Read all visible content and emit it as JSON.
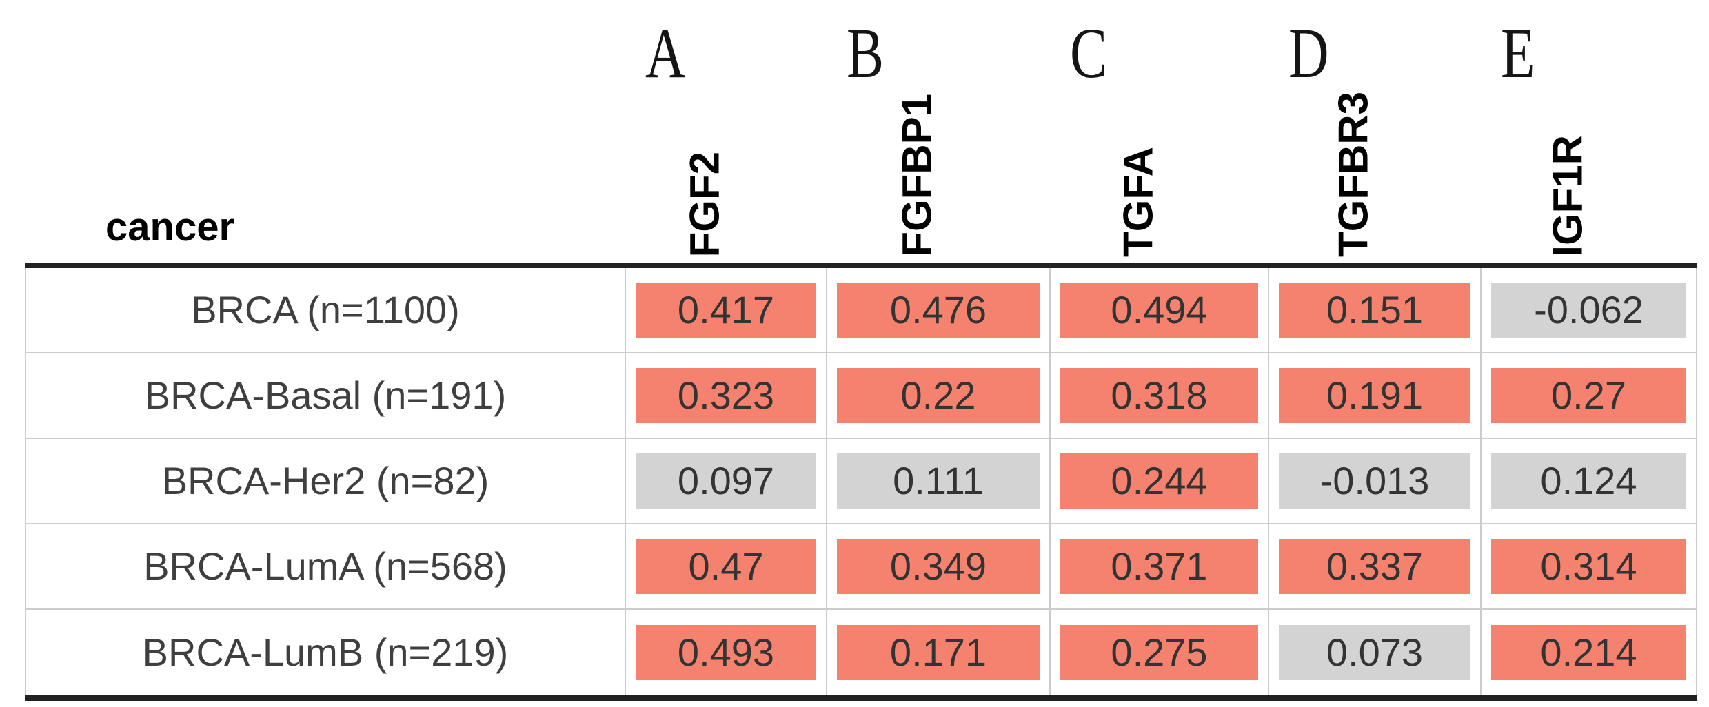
{
  "colors": {
    "significant_bg": "#F4826E",
    "not_significant_bg": "#D3D3D3",
    "header_rule": "#212121",
    "grid_line": "#CCCCCC",
    "sort_icon": "#E2E2E2"
  },
  "header": {
    "row_header_label": "cancer",
    "columns": [
      {
        "panel_letter": "A",
        "gene": "FGF2"
      },
      {
        "panel_letter": "B",
        "gene": "FGFBP1"
      },
      {
        "panel_letter": "C",
        "gene": "TGFA"
      },
      {
        "panel_letter": "D",
        "gene": "TGFBR3"
      },
      {
        "panel_letter": "E",
        "gene": "IGF1R"
      }
    ]
  },
  "rows": [
    {
      "label": "BRCA (n=1100)",
      "cells": [
        {
          "value": "0.417",
          "significant": true
        },
        {
          "value": "0.476",
          "significant": true
        },
        {
          "value": "0.494",
          "significant": true
        },
        {
          "value": "0.151",
          "significant": true
        },
        {
          "value": "-0.062",
          "significant": false
        }
      ]
    },
    {
      "label": "BRCA-Basal (n=191)",
      "cells": [
        {
          "value": "0.323",
          "significant": true
        },
        {
          "value": "0.22",
          "significant": true
        },
        {
          "value": "0.318",
          "significant": true
        },
        {
          "value": "0.191",
          "significant": true
        },
        {
          "value": "0.27",
          "significant": true
        }
      ]
    },
    {
      "label": "BRCA-Her2 (n=82)",
      "cells": [
        {
          "value": "0.097",
          "significant": false
        },
        {
          "value": "0.111",
          "significant": false
        },
        {
          "value": "0.244",
          "significant": true
        },
        {
          "value": "-0.013",
          "significant": false
        },
        {
          "value": "0.124",
          "significant": false
        }
      ]
    },
    {
      "label": "BRCA-LumA (n=568)",
      "cells": [
        {
          "value": "0.47",
          "significant": true
        },
        {
          "value": "0.349",
          "significant": true
        },
        {
          "value": "0.371",
          "significant": true
        },
        {
          "value": "0.337",
          "significant": true
        },
        {
          "value": "0.314",
          "significant": true
        }
      ]
    },
    {
      "label": "BRCA-LumB (n=219)",
      "cells": [
        {
          "value": "0.493",
          "significant": true
        },
        {
          "value": "0.171",
          "significant": true
        },
        {
          "value": "0.275",
          "significant": true
        },
        {
          "value": "0.073",
          "significant": false
        },
        {
          "value": "0.214",
          "significant": true
        }
      ]
    }
  ],
  "chart_data": {
    "type": "table",
    "row_header": "cancer",
    "panel_letters": [
      "A",
      "B",
      "C",
      "D",
      "E"
    ],
    "columns": [
      "FGF2",
      "FGFBP1",
      "TGFA",
      "TGFBR3",
      "IGF1R"
    ],
    "rows": [
      "BRCA (n=1100)",
      "BRCA-Basal (n=191)",
      "BRCA-Her2 (n=82)",
      "BRCA-LumA (n=568)",
      "BRCA-LumB (n=219)"
    ],
    "values": [
      [
        0.417,
        0.476,
        0.494,
        0.151,
        -0.062
      ],
      [
        0.323,
        0.22,
        0.318,
        0.191,
        0.27
      ],
      [
        0.097,
        0.111,
        0.244,
        -0.013,
        0.124
      ],
      [
        0.47,
        0.349,
        0.371,
        0.337,
        0.314
      ],
      [
        0.493,
        0.171,
        0.275,
        0.073,
        0.214
      ]
    ],
    "cell_colors": [
      [
        "red",
        "red",
        "red",
        "red",
        "gray"
      ],
      [
        "red",
        "red",
        "red",
        "red",
        "red"
      ],
      [
        "gray",
        "gray",
        "red",
        "gray",
        "gray"
      ],
      [
        "red",
        "red",
        "red",
        "red",
        "red"
      ],
      [
        "red",
        "red",
        "red",
        "gray",
        "red"
      ]
    ]
  }
}
